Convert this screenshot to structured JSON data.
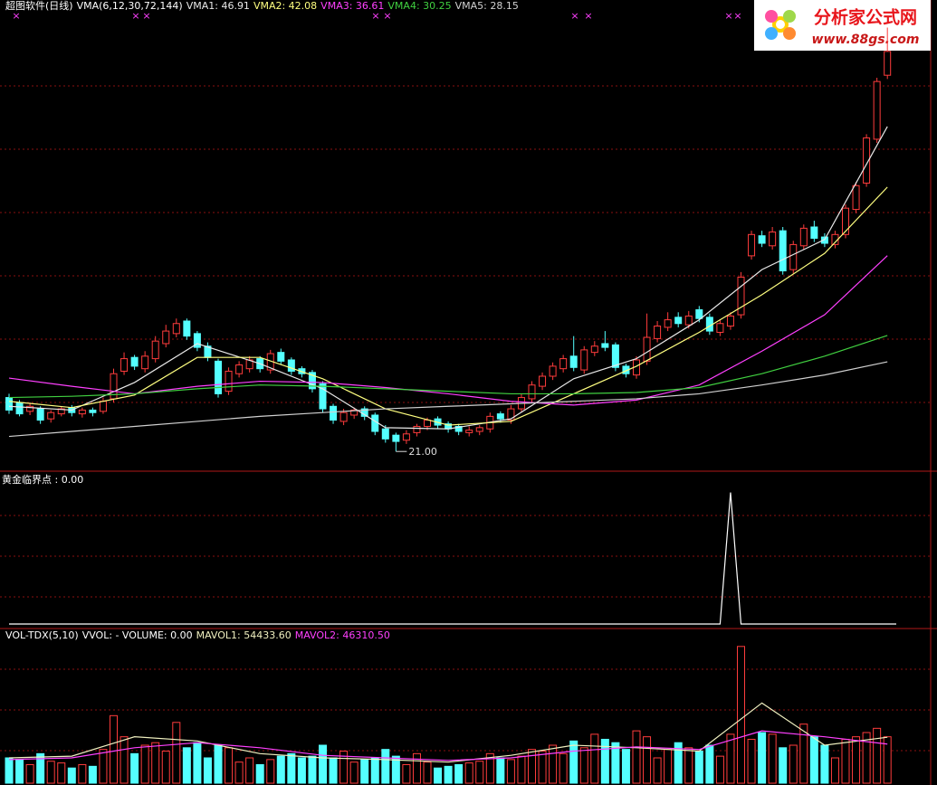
{
  "chart_data": {
    "type": "candlestick",
    "title": "超图软件(日线)",
    "indicator": "VMA(6,12,30,72,144)",
    "open": [
      25.3,
      24.9,
      24.2,
      24.4,
      23.6,
      24.0,
      24.5,
      24.0,
      24.3,
      24.2,
      25.2,
      27.4,
      28.5,
      27.6,
      28.4,
      29.6,
      30.4,
      31.4,
      30.4,
      29.4,
      28.2,
      25.8,
      27.2,
      27.6,
      28.4,
      27.5,
      28.9,
      28.3,
      27.6,
      27.3,
      26.4,
      24.6,
      23.4,
      23.9,
      24.4,
      23.9,
      22.8,
      22.3,
      21.9,
      22.5,
      23.0,
      23.6,
      23.2,
      23.0,
      22.5,
      22.6,
      22.8,
      24.0,
      23.5,
      24.4,
      25.2,
      26.2,
      27.0,
      27.6,
      28.6,
      27.5,
      28.9,
      29.6,
      29.5,
      27.8,
      27.1,
      28.2,
      30.0,
      30.9,
      31.7,
      31.1,
      32.3,
      31.7,
      30.5,
      31.0,
      31.9,
      36.6,
      38.2,
      37.4,
      38.6,
      35.5,
      37.4,
      38.9,
      38.1,
      37.5,
      38.3,
      40.3,
      42.4,
      45.9,
      51.0
    ],
    "high": [
      25.6,
      25.1,
      24.9,
      24.6,
      24.3,
      24.6,
      24.7,
      24.5,
      24.5,
      25.3,
      27.6,
      28.9,
      28.7,
      29.0,
      30.2,
      31.1,
      31.6,
      31.6,
      30.6,
      29.7,
      28.4,
      27.7,
      28.2,
      28.6,
      28.6,
      29.1,
      29.2,
      28.5,
      27.8,
      27.5,
      26.6,
      24.8,
      24.4,
      24.5,
      24.6,
      24.1,
      23.1,
      22.5,
      22.7,
      23.2,
      23.7,
      23.8,
      23.4,
      23.2,
      23.0,
      23.1,
      24.1,
      24.2,
      24.7,
      25.6,
      26.6,
      27.3,
      28.1,
      28.7,
      30.2,
      29.4,
      29.8,
      30.6,
      29.7,
      28.0,
      28.6,
      32.0,
      31.4,
      32.1,
      32.1,
      32.2,
      32.6,
      32.0,
      31.5,
      32.1,
      35.3,
      38.6,
      38.6,
      38.9,
      38.9,
      37.8,
      39.1,
      39.4,
      38.4,
      38.6,
      40.7,
      42.5,
      46.3,
      50.8,
      54.8
    ],
    "low": [
      24.0,
      23.8,
      23.9,
      23.2,
      23.3,
      23.8,
      23.8,
      23.7,
      23.8,
      24.0,
      24.9,
      27.1,
      27.5,
      27.3,
      28.1,
      29.3,
      30.1,
      29.9,
      29.0,
      28.2,
      25.3,
      25.5,
      26.9,
      27.3,
      27.3,
      27.2,
      27.9,
      27.1,
      26.9,
      25.7,
      24.1,
      23.2,
      23.1,
      23.6,
      23.5,
      22.3,
      21.7,
      21.0,
      21.6,
      22.2,
      22.7,
      22.8,
      22.5,
      22.3,
      22.2,
      22.3,
      22.5,
      23.3,
      23.2,
      24.1,
      24.9,
      25.9,
      26.7,
      27.3,
      27.4,
      27.2,
      28.6,
      29.0,
      27.4,
      26.9,
      26.8,
      27.9,
      29.7,
      30.6,
      30.9,
      30.8,
      31.3,
      30.3,
      30.2,
      30.7,
      31.6,
      36.3,
      37.3,
      37.1,
      35.1,
      35.2,
      37.1,
      37.7,
      37.3,
      37.2,
      38.0,
      40.0,
      42.1,
      45.6,
      50.7
    ],
    "close": [
      24.3,
      24.0,
      24.6,
      23.5,
      24.1,
      24.4,
      24.1,
      24.3,
      24.1,
      25.0,
      27.2,
      28.4,
      27.8,
      28.6,
      29.8,
      30.6,
      31.2,
      30.2,
      29.3,
      28.5,
      25.6,
      27.4,
      27.9,
      28.3,
      27.6,
      28.8,
      28.2,
      27.4,
      27.2,
      26.0,
      24.4,
      23.5,
      24.1,
      24.3,
      23.8,
      22.6,
      22.0,
      21.8,
      22.4,
      23.0,
      23.5,
      23.1,
      22.8,
      22.6,
      22.7,
      22.9,
      23.8,
      23.6,
      24.4,
      25.3,
      26.3,
      27.0,
      27.8,
      28.4,
      27.7,
      29.1,
      29.4,
      29.3,
      27.7,
      27.2,
      28.3,
      30.1,
      31.0,
      31.5,
      31.2,
      31.8,
      31.6,
      30.6,
      31.2,
      31.8,
      34.9,
      38.3,
      37.6,
      38.5,
      35.4,
      37.5,
      38.8,
      38.0,
      37.6,
      38.3,
      40.4,
      42.2,
      46.0,
      50.5,
      52.9
    ],
    "up_color": "#ff3c3c",
    "down_color": "#54ffff",
    "ylim": [
      19.5,
      57.0
    ],
    "low_label": "21.00",
    "series": [
      {
        "label": "VMA1: 46.91",
        "color": "#e8e8e8",
        "x": [
          0,
          6,
          12,
          18,
          24,
          30,
          36,
          42,
          48,
          54,
          60,
          66,
          72,
          78,
          84
        ],
        "values": [
          24.6,
          24.3,
          26.5,
          29.6,
          28.0,
          26.0,
          22.9,
          22.8,
          23.6,
          26.8,
          28.4,
          31.5,
          35.5,
          37.9,
          46.91
        ]
      },
      {
        "label": "VMA2: 42.08",
        "color": "#ffff80",
        "x": [
          0,
          6,
          12,
          18,
          24,
          30,
          36,
          42,
          48,
          54,
          60,
          66,
          72,
          78,
          84
        ],
        "values": [
          25.0,
          24.5,
          25.5,
          28.5,
          28.5,
          26.8,
          24.4,
          23.1,
          23.4,
          25.6,
          27.8,
          30.5,
          33.5,
          36.8,
          42.08
        ]
      },
      {
        "label": "VMA3: 36.61",
        "color": "#ff40ff",
        "x": [
          0,
          6,
          12,
          18,
          24,
          30,
          36,
          42,
          48,
          54,
          60,
          66,
          72,
          78,
          84
        ],
        "values": [
          26.85,
          26.2,
          25.6,
          26.2,
          26.6,
          26.5,
          26.1,
          25.6,
          25.0,
          24.7,
          25.1,
          26.3,
          29.0,
          31.9,
          36.61
        ]
      },
      {
        "label": "VMA4: 30.25",
        "color": "#40d040",
        "x": [
          0,
          6,
          12,
          18,
          24,
          30,
          36,
          42,
          48,
          54,
          60,
          66,
          72,
          78,
          84
        ],
        "values": [
          25.3,
          25.4,
          25.6,
          26.0,
          26.3,
          26.2,
          26.0,
          25.8,
          25.6,
          25.6,
          25.7,
          26.1,
          27.2,
          28.6,
          30.25
        ]
      },
      {
        "label": "VMA5: 28.15",
        "color": "#d0d0d0",
        "x": [
          0,
          6,
          12,
          18,
          24,
          30,
          36,
          42,
          48,
          54,
          60,
          66,
          72,
          78,
          84
        ],
        "values": [
          22.2,
          22.6,
          23.0,
          23.4,
          23.8,
          24.1,
          24.4,
          24.6,
          24.8,
          25.0,
          25.2,
          25.6,
          26.3,
          27.1,
          28.15
        ]
      }
    ],
    "signal": {
      "label": "黄金临界点 : 0.00",
      "color": "#ffffff",
      "ylim": [
        0,
        1.1
      ],
      "values": [
        0,
        0,
        0,
        0,
        0,
        0,
        0,
        0,
        0,
        0,
        0,
        0,
        0,
        0,
        0,
        0,
        0,
        0,
        0,
        0,
        0,
        0,
        0,
        0,
        0,
        0,
        0,
        0,
        0,
        0,
        0,
        0,
        0,
        0,
        0,
        0,
        0,
        0,
        0,
        0,
        0,
        0,
        0,
        0,
        0,
        0,
        0,
        0,
        0,
        0,
        0,
        0,
        0,
        0,
        0,
        0,
        0,
        0,
        0,
        0,
        0,
        0,
        0,
        0,
        0,
        0,
        0,
        0,
        0,
        1,
        0,
        0,
        0,
        0,
        0,
        0,
        0,
        0,
        0,
        0,
        0,
        0,
        0,
        0,
        0
      ]
    },
    "volume": {
      "labels": [
        "VOL-TDX(5,10)",
        "VVOL: -",
        "VOLUME: 0.00",
        "MAVOL1: 54433.60",
        "MAVOL2: 46310.50"
      ],
      "ylim": [
        0,
        165000
      ],
      "values": [
        30000,
        28000,
        22000,
        35000,
        26000,
        24000,
        18000,
        22000,
        20000,
        40000,
        80000,
        55000,
        35000,
        45000,
        48000,
        38000,
        72000,
        42000,
        48000,
        30000,
        45000,
        42000,
        25000,
        30000,
        22000,
        28000,
        32000,
        35000,
        30000,
        32000,
        45000,
        30000,
        38000,
        25000,
        28000,
        30000,
        40000,
        32000,
        22000,
        35000,
        25000,
        18000,
        20000,
        22000,
        24000,
        26000,
        35000,
        30000,
        28000,
        32000,
        40000,
        38000,
        45000,
        35000,
        50000,
        42000,
        58000,
        52000,
        48000,
        40000,
        62000,
        55000,
        30000,
        40000,
        48000,
        42000,
        38000,
        45000,
        32000,
        58000,
        162000,
        52000,
        60000,
        58000,
        42000,
        45000,
        70000,
        55000,
        45000,
        30000,
        52000,
        55000,
        60000,
        65000,
        55000
      ],
      "ma": [
        {
          "color": "#f0f0c0",
          "x": [
            0,
            6,
            12,
            18,
            24,
            30,
            36,
            42,
            48,
            54,
            60,
            66,
            72,
            78,
            84
          ],
          "values": [
            30000,
            32000,
            55000,
            50000,
            35000,
            30000,
            28000,
            25000,
            33000,
            45000,
            42000,
            38000,
            95000,
            45000,
            54433.6
          ]
        },
        {
          "color": "#ff40ff",
          "x": [
            0,
            6,
            12,
            18,
            24,
            30,
            36,
            42,
            48,
            54,
            60,
            66,
            72,
            78,
            84
          ],
          "values": [
            28000,
            30000,
            42000,
            48000,
            42000,
            33000,
            30000,
            27000,
            30000,
            38000,
            43000,
            40000,
            62000,
            55000,
            46310.5
          ]
        }
      ]
    },
    "logo": {
      "name": "分析家公式网",
      "url": "www.88gs.com"
    }
  }
}
